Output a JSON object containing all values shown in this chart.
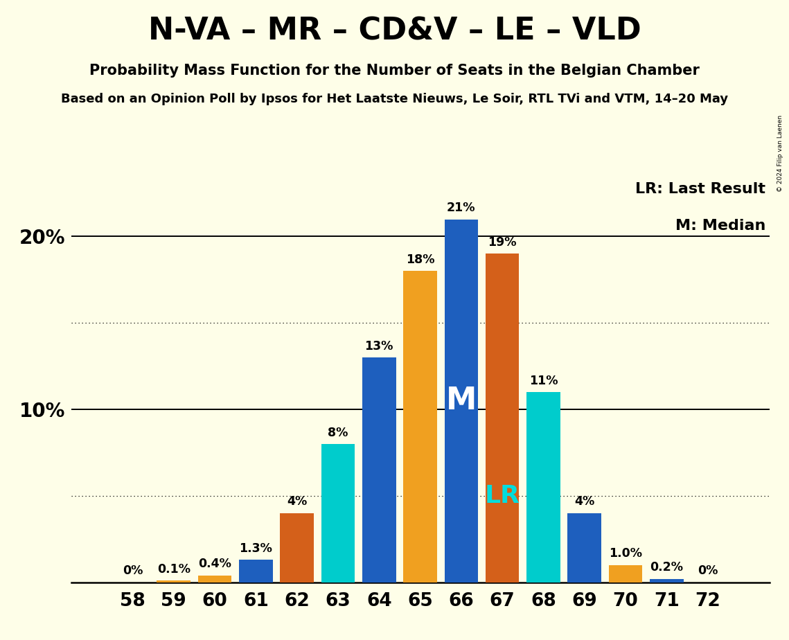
{
  "title": "N-VA – MR – CD&V – LE – VLD",
  "subtitle": "Probability Mass Function for the Number of Seats in the Belgian Chamber",
  "subtitle2": "Based on an Opinion Poll by Ipsos for Het Laatste Nieuws, Le Soir, RTL TVi and VTM, 14–20 May",
  "copyright": "© 2024 Filip van Laenen",
  "seats": [
    58,
    59,
    60,
    61,
    62,
    63,
    64,
    65,
    66,
    67,
    68,
    69,
    70,
    71,
    72
  ],
  "probabilities": [
    0.0,
    0.1,
    0.4,
    1.3,
    4.0,
    8.0,
    13.0,
    18.0,
    21.0,
    19.0,
    11.0,
    4.0,
    1.0,
    0.2,
    0.0
  ],
  "bar_colors": [
    "#1e5fbe",
    "#f0a020",
    "#f0a020",
    "#1e5fbe",
    "#d4601a",
    "#00cccc",
    "#1e5fbe",
    "#f0a020",
    "#1e5fbe",
    "#d4601a",
    "#00cccc",
    "#1e5fbe",
    "#f0a020",
    "#1e5fbe",
    "#1e5fbe"
  ],
  "label_formats": [
    "0%",
    "0.1%",
    "0.4%",
    "1.3%",
    "4%",
    "8%",
    "13%",
    "18%",
    "21%",
    "19%",
    "11%",
    "4%",
    "1.0%",
    "0.2%",
    "0%"
  ],
  "median_seat": 66,
  "lr_seat": 67,
  "lr_color": "#00dddd",
  "median_color": "#ffffff",
  "legend_lr": "LR: Last Result",
  "legend_m": "M: Median",
  "background_color": "#fefee8",
  "solid_hlines": [
    10,
    20
  ],
  "dotted_hlines": [
    5,
    15
  ],
  "ylim": [
    0,
    23.5
  ],
  "xlim": [
    56.5,
    73.5
  ],
  "bar_width": 0.82
}
